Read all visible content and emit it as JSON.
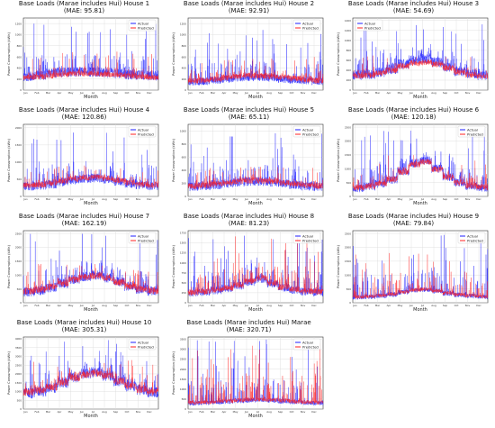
{
  "figure": {
    "colors": {
      "actual": "#1f1fff",
      "predicted": "#ff2020",
      "grid": "#d9d9d9",
      "axis": "#333333"
    }
  },
  "chart_data": [
    {
      "type": "line",
      "title": "Base Loads (Marae includes Hui) House 1",
      "subtitle": "(MAE: 95.81)",
      "xlabel": "Month",
      "ylabel": "Power Consumption (kWh)",
      "x_ticks": [
        "Jan",
        "Feb",
        "Mar",
        "Apr",
        "May",
        "Jun",
        "Jul",
        "Aug",
        "Sep",
        "Oct",
        "Nov",
        "Dec"
      ],
      "y_ticks": [
        0,
        200,
        400,
        600,
        800,
        1000,
        1200
      ],
      "ylim": [
        0,
        1300
      ],
      "series": [
        {
          "name": "Actual",
          "color": "#1f1fff",
          "level": [
            250,
            270,
            300,
            320,
            330,
            330,
            320,
            310,
            300,
            280,
            270,
            260
          ],
          "spread": 180,
          "spike_max": 1250
        },
        {
          "name": "Predicted",
          "color": "#ff2020",
          "level": [
            230,
            240,
            260,
            280,
            300,
            300,
            290,
            280,
            270,
            260,
            240,
            230
          ],
          "spread": 100,
          "spike_max": 700
        }
      ],
      "legend": "top-right",
      "grid": true
    },
    {
      "type": "line",
      "title": "Base Loads (Marae includes Hui) House 2",
      "subtitle": "(MAE: 92.91)",
      "xlabel": "Month",
      "ylabel": "Power Consumption (kWh)",
      "x_ticks": [
        "Jan",
        "Feb",
        "Mar",
        "Apr",
        "May",
        "Jun",
        "Jul",
        "Aug",
        "Sep",
        "Oct",
        "Nov",
        "Dec"
      ],
      "y_ticks": [
        0,
        200,
        400,
        600,
        800,
        1000,
        1200
      ],
      "ylim": [
        0,
        1300
      ],
      "series": [
        {
          "name": "Actual",
          "color": "#1f1fff",
          "level": [
            150,
            160,
            180,
            200,
            220,
            230,
            230,
            220,
            200,
            180,
            170,
            160
          ],
          "spread": 140,
          "spike_max": 1100
        },
        {
          "name": "Predicted",
          "color": "#ff2020",
          "level": [
            170,
            180,
            200,
            230,
            250,
            260,
            260,
            250,
            230,
            210,
            190,
            170
          ],
          "spread": 110,
          "spike_max": 600
        }
      ],
      "legend": "top-right",
      "grid": true
    },
    {
      "type": "line",
      "title": "Base Loads (Marae includes Hui) House 3",
      "subtitle": "(MAE: 54.69)",
      "xlabel": "Month",
      "ylabel": "Power Consumption (kWh)",
      "x_ticks": [
        "Jan",
        "Feb",
        "Mar",
        "Apr",
        "May",
        "Jun",
        "Jul",
        "Aug",
        "Sep",
        "Oct",
        "Nov",
        "Dec"
      ],
      "y_ticks": [
        0,
        200,
        400,
        600,
        800,
        1000,
        1200,
        1400
      ],
      "ylim": [
        0,
        1450
      ],
      "series": [
        {
          "name": "Actual",
          "color": "#1f1fff",
          "level": [
            300,
            320,
            360,
            420,
            520,
            600,
            620,
            560,
            460,
            380,
            330,
            300
          ],
          "spread": 200,
          "spike_max": 1350
        },
        {
          "name": "Predicted",
          "color": "#ff2020",
          "level": [
            280,
            300,
            340,
            400,
            480,
            540,
            560,
            520,
            440,
            360,
            310,
            280
          ],
          "spread": 120,
          "spike_max": 700
        }
      ],
      "legend": "top-left",
      "grid": true
    },
    {
      "type": "line",
      "title": "Base Loads (Marae includes Hui) House 4",
      "subtitle": "(MAE: 120.86)",
      "xlabel": "Month",
      "ylabel": "Power Consumption (kWh)",
      "x_ticks": [
        "Jan",
        "Feb",
        "Mar",
        "Apr",
        "May",
        "Jun",
        "Jul",
        "Aug",
        "Sep",
        "Oct",
        "Nov",
        "Dec"
      ],
      "y_ticks": [
        0,
        500,
        1000,
        1500,
        2000
      ],
      "ylim": [
        0,
        2100
      ],
      "series": [
        {
          "name": "Actual",
          "color": "#1f1fff",
          "level": [
            300,
            320,
            360,
            420,
            480,
            520,
            540,
            500,
            440,
            380,
            340,
            310
          ],
          "spread": 260,
          "spike_max": 2000
        },
        {
          "name": "Predicted",
          "color": "#ff2020",
          "level": [
            320,
            340,
            380,
            440,
            500,
            540,
            560,
            520,
            460,
            400,
            350,
            320
          ],
          "spread": 160,
          "spike_max": 900
        }
      ],
      "legend": "top-right",
      "grid": true
    },
    {
      "type": "line",
      "title": "Base Loads (Marae includes Hui) House 5",
      "subtitle": "(MAE: 65.11)",
      "xlabel": "Month",
      "ylabel": "Power Consumption (kWh)",
      "x_ticks": [
        "Jan",
        "Feb",
        "Mar",
        "Apr",
        "May",
        "Jun",
        "Jul",
        "Aug",
        "Sep",
        "Oct",
        "Nov",
        "Dec"
      ],
      "y_ticks": [
        0,
        200,
        400,
        600,
        800,
        1000
      ],
      "ylim": [
        0,
        1100
      ],
      "series": [
        {
          "name": "Actual",
          "color": "#1f1fff",
          "level": [
            150,
            160,
            180,
            200,
            220,
            230,
            230,
            220,
            200,
            180,
            160,
            150
          ],
          "spread": 140,
          "spike_max": 1000
        },
        {
          "name": "Predicted",
          "color": "#ff2020",
          "level": [
            160,
            170,
            190,
            210,
            230,
            240,
            240,
            230,
            210,
            190,
            170,
            160
          ],
          "spread": 90,
          "spike_max": 450
        }
      ],
      "legend": "top-right",
      "grid": true
    },
    {
      "type": "line",
      "title": "Base Loads (Marae includes Hui) House 6",
      "subtitle": "(MAE: 120.18)",
      "xlabel": "Month",
      "ylabel": "Power Consumption (kWh)",
      "x_ticks": [
        "Jan",
        "Feb",
        "Mar",
        "Apr",
        "May",
        "Jun",
        "Jul",
        "Aug",
        "Sep",
        "Oct",
        "Nov",
        "Dec"
      ],
      "y_ticks": [
        0,
        500,
        1000,
        1500,
        2000,
        2500
      ],
      "ylim": [
        0,
        2600
      ],
      "series": [
        {
          "name": "Actual",
          "color": "#1f1fff",
          "level": [
            300,
            350,
            450,
            600,
            900,
            1200,
            1300,
            1000,
            700,
            500,
            380,
            320
          ],
          "spread": 300,
          "spike_max": 2500
        },
        {
          "name": "Predicted",
          "color": "#ff2020",
          "level": [
            320,
            370,
            460,
            620,
            880,
            1150,
            1250,
            980,
            700,
            500,
            390,
            330
          ],
          "spread": 220,
          "spike_max": 1500
        }
      ],
      "legend": "top-right",
      "grid": true
    },
    {
      "type": "line",
      "title": "Base Loads (Marae includes Hui) House 7",
      "subtitle": "(MAE: 162.19)",
      "xlabel": "Month",
      "ylabel": "Power Consumption (kWh)",
      "x_ticks": [
        "Jan",
        "Feb",
        "Mar",
        "Apr",
        "May",
        "Jun",
        "Jul",
        "Aug",
        "Sep",
        "Oct",
        "Nov",
        "Dec"
      ],
      "y_ticks": [
        0,
        500,
        1000,
        1500,
        2000,
        2500
      ],
      "ylim": [
        0,
        2600
      ],
      "series": [
        {
          "name": "Actual",
          "color": "#1f1fff",
          "level": [
            400,
            450,
            550,
            700,
            850,
            950,
            1000,
            900,
            750,
            600,
            480,
            420
          ],
          "spread": 350,
          "spike_max": 2500
        },
        {
          "name": "Predicted",
          "color": "#ff2020",
          "level": [
            420,
            470,
            560,
            700,
            840,
            930,
            980,
            890,
            740,
            600,
            490,
            430
          ],
          "spread": 240,
          "spike_max": 1400
        }
      ],
      "legend": "top-right",
      "grid": true
    },
    {
      "type": "line",
      "title": "Base Loads (Marae includes Hui) House 8",
      "subtitle": "(MAE: 81.23)",
      "xlabel": "Month",
      "ylabel": "Power Consumption (kWh)",
      "x_ticks": [
        "Jan",
        "Feb",
        "Mar",
        "Apr",
        "May",
        "Jun",
        "Jul",
        "Aug",
        "Sep",
        "Oct",
        "Nov",
        "Dec"
      ],
      "y_ticks": [
        0,
        250,
        500,
        750,
        1000,
        1250,
        1500,
        1750
      ],
      "ylim": [
        0,
        1800
      ],
      "series": [
        {
          "name": "Actual",
          "color": "#1f1fff",
          "level": [
            250,
            270,
            310,
            360,
            430,
            520,
            600,
            480,
            380,
            320,
            280,
            260
          ],
          "spread": 200,
          "spike_max": 1750
        },
        {
          "name": "Predicted",
          "color": "#ff2020",
          "level": [
            260,
            280,
            320,
            370,
            440,
            540,
            620,
            490,
            390,
            330,
            290,
            270
          ],
          "spread": 150,
          "spike_max": 1700
        }
      ],
      "legend": "top-right",
      "grid": true
    },
    {
      "type": "line",
      "title": "Base Loads (Marae includes Hui) House 9",
      "subtitle": "(MAE: 79.84)",
      "xlabel": "Month",
      "ylabel": "Power Consumption (kWh)",
      "x_ticks": [
        "Jan",
        "Feb",
        "Mar",
        "Apr",
        "May",
        "Jun",
        "Jul",
        "Aug",
        "Sep",
        "Oct",
        "Nov",
        "Dec"
      ],
      "y_ticks": [
        0,
        500,
        1000,
        1500,
        2000,
        2500
      ],
      "ylim": [
        0,
        2600
      ],
      "series": [
        {
          "name": "Actual",
          "color": "#1f1fff",
          "level": [
            200,
            220,
            250,
            300,
            380,
            450,
            480,
            420,
            340,
            280,
            240,
            210
          ],
          "spread": 180,
          "spike_max": 2500
        },
        {
          "name": "Predicted",
          "color": "#ff2020",
          "level": [
            210,
            230,
            260,
            310,
            390,
            460,
            490,
            430,
            350,
            290,
            250,
            220
          ],
          "spread": 130,
          "spike_max": 1800
        }
      ],
      "legend": "top-right",
      "grid": true
    },
    {
      "type": "line",
      "title": "Base Loads (Marae includes Hui) House 10",
      "subtitle": "(MAE: 305.31)",
      "xlabel": "Month",
      "ylabel": "Power Consumption (kWh)",
      "x_ticks": [
        "Jan",
        "Feb",
        "Mar",
        "Apr",
        "May",
        "Jun",
        "Jul",
        "Aug",
        "Sep",
        "Oct",
        "Nov",
        "Dec"
      ],
      "y_ticks": [
        0,
        500,
        1000,
        1500,
        2000,
        2500,
        3000,
        3500,
        4000
      ],
      "ylim": [
        0,
        4100
      ],
      "series": [
        {
          "name": "Actual",
          "color": "#1f1fff",
          "level": [
            900,
            1000,
            1200,
            1500,
            1800,
            2000,
            2100,
            1900,
            1600,
            1300,
            1100,
            950
          ],
          "spread": 600,
          "spike_max": 4000
        },
        {
          "name": "Predicted",
          "color": "#ff2020",
          "level": [
            950,
            1050,
            1250,
            1500,
            1780,
            1950,
            2050,
            1880,
            1600,
            1320,
            1120,
            980
          ],
          "spread": 420,
          "spike_max": 2800
        }
      ],
      "legend": "top-right",
      "grid": true
    },
    {
      "type": "line",
      "title": "Base Loads (Marae includes Hui) Marae",
      "subtitle": "(MAE: 320.71)",
      "xlabel": "Month",
      "ylabel": "Power Consumption (kWh)",
      "x_ticks": [
        "Jan",
        "Feb",
        "Mar",
        "Apr",
        "May",
        "Jun",
        "Jul",
        "Aug",
        "Sep",
        "Oct",
        "Nov",
        "Dec"
      ],
      "y_ticks": [
        0,
        500,
        1000,
        1500,
        2000,
        2500,
        3000,
        3500
      ],
      "ylim": [
        0,
        3600
      ],
      "series": [
        {
          "name": "Actual",
          "color": "#1f1fff",
          "level": [
            300,
            320,
            350,
            380,
            420,
            450,
            460,
            440,
            400,
            360,
            330,
            310
          ],
          "spread": 250,
          "spike_max": 3500
        },
        {
          "name": "Predicted",
          "color": "#ff2020",
          "level": [
            320,
            340,
            370,
            400,
            440,
            470,
            480,
            460,
            420,
            380,
            350,
            330
          ],
          "spread": 200,
          "spike_max": 3300
        }
      ],
      "legend": "top-right",
      "grid": true
    }
  ]
}
